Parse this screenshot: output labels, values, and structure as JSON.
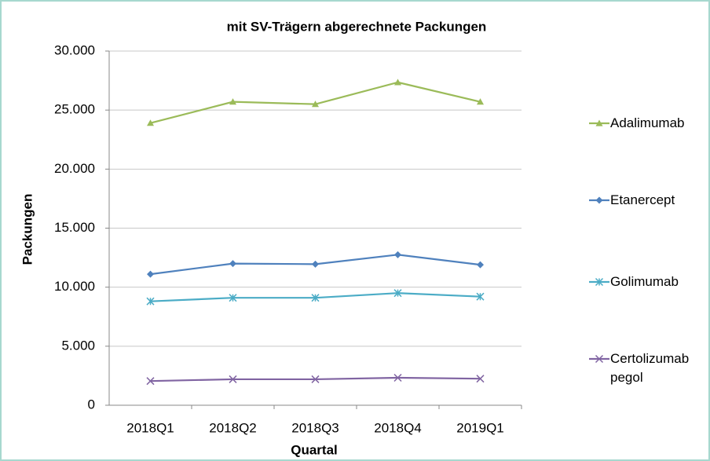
{
  "chart_data": {
    "type": "line",
    "title": "mit SV-Trägern abgerechnete Packungen",
    "xlabel": "Quartal",
    "ylabel": "Packungen",
    "categories": [
      "2018Q1",
      "2018Q2",
      "2018Q3",
      "2018Q4",
      "2019Q1"
    ],
    "series": [
      {
        "name": "Adalimumab",
        "color": "#9bbb59",
        "marker": "triangle",
        "values": [
          23900,
          25700,
          25500,
          27350,
          25700
        ]
      },
      {
        "name": "Etanercept",
        "color": "#4f81bd",
        "marker": "diamond",
        "values": [
          11100,
          12000,
          11950,
          12750,
          11900
        ]
      },
      {
        "name": "Golimumab",
        "color": "#4bacc6",
        "marker": "star",
        "values": [
          8800,
          9100,
          9100,
          9500,
          9200
        ]
      },
      {
        "name": "Certolizumab pegol",
        "color": "#8064a2",
        "marker": "x",
        "values": [
          2050,
          2200,
          2200,
          2330,
          2250
        ]
      }
    ],
    "ylim": [
      0,
      30000
    ],
    "yticks": [
      0,
      {
        "value": 5000,
        "label": "5.000"
      },
      {
        "value": 10000,
        "label": "10.000"
      },
      {
        "value": 15000,
        "label": "15.000"
      },
      {
        "value": 20000,
        "label": "20.000"
      },
      {
        "value": 25000,
        "label": "25.000"
      },
      {
        "value": 30000,
        "label": "30.000"
      }
    ],
    "grid": true,
    "legend": "right"
  }
}
